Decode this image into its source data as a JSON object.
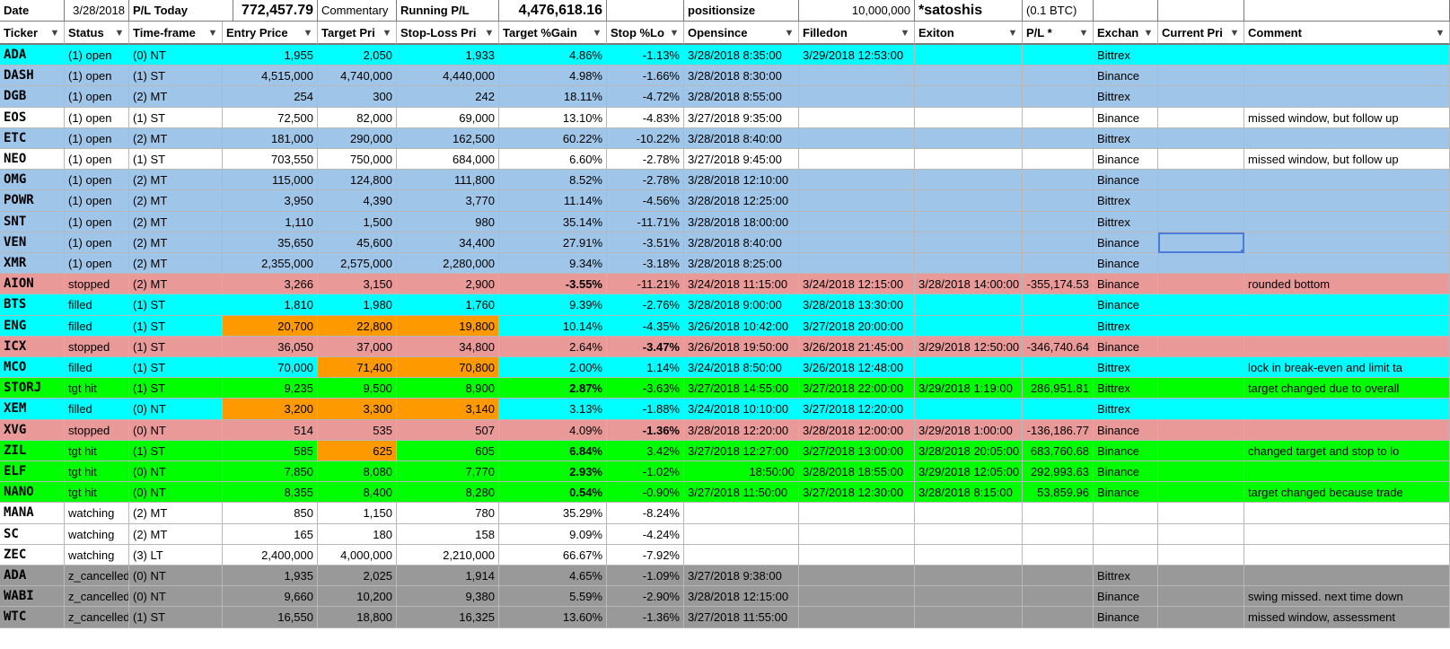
{
  "colors": {
    "open_cyan": "#00ffff",
    "open_blue": "#9fc5e8",
    "stopped": "#ea9999",
    "filled": "#00ffff",
    "tgt_hit": "#00ff00",
    "cancelled": "#999999",
    "orange": "#ff9900",
    "white": "#ffffff"
  },
  "top": {
    "date_label": "Date",
    "date_value": "3/28/2018",
    "pl_today_label": "P/L Today",
    "pl_today_value": "772,457.79",
    "commentary_label": "Commentary",
    "running_label": "Running P/L",
    "running_value": "4,476,618.16",
    "positionsize_label": "positionsize",
    "positionsize_value": "10,000,000",
    "satoshis_label": "*satoshis",
    "btc_label": "(0.1 BTC)"
  },
  "headers": [
    "Ticker",
    "Status",
    "Time-frame",
    "Entry Price",
    "Target Pri",
    "Stop-Loss Pri",
    "Target %Gain",
    "Stop %Lo",
    "Opensince",
    "Filledon",
    "Exiton",
    "P/L *",
    "Exchan",
    "Current Pri",
    "Comment"
  ],
  "rows": [
    {
      "bg": "open_cyan",
      "cells": [
        "ADA",
        "(1) open",
        "(0) NT",
        "1,955",
        "2,050",
        "1,933",
        "4.86%",
        "-1.13%",
        "3/28/2018 8:35:00",
        "3/29/2018 12:53:00",
        "",
        "",
        "Bittrex",
        "",
        ""
      ]
    },
    {
      "bg": "open_blue",
      "cells": [
        "DASH",
        "(1) open",
        "(1) ST",
        "4,515,000",
        "4,740,000",
        "4,440,000",
        "4.98%",
        "-1.66%",
        "3/28/2018 8:30:00",
        "",
        "",
        "",
        "Binance",
        "",
        ""
      ]
    },
    {
      "bg": "open_blue",
      "cells": [
        "DGB",
        "(1) open",
        "(2) MT",
        "254",
        "300",
        "242",
        "18.11%",
        "-4.72%",
        "3/28/2018 8:55:00",
        "",
        "",
        "",
        "Bittrex",
        "",
        ""
      ]
    },
    {
      "bg": "white",
      "cells": [
        "EOS",
        "(1) open",
        "(1) ST",
        "72,500",
        "82,000",
        "69,000",
        "13.10%",
        "-4.83%",
        "3/27/2018 9:35:00",
        "",
        "",
        "",
        "Binance",
        "",
        "missed window, but follow up"
      ]
    },
    {
      "bg": "open_blue",
      "cells": [
        "ETC",
        "(1) open",
        "(2) MT",
        "181,000",
        "290,000",
        "162,500",
        "60.22%",
        "-10.22%",
        "3/28/2018 8:40:00",
        "",
        "",
        "",
        "Bittrex",
        "",
        ""
      ]
    },
    {
      "bg": "white",
      "cells": [
        "NEO",
        "(1) open",
        "(1) ST",
        "703,550",
        "750,000",
        "684,000",
        "6.60%",
        "-2.78%",
        "3/27/2018 9:45:00",
        "",
        "",
        "",
        "Binance",
        "",
        "missed window, but follow up"
      ]
    },
    {
      "bg": "open_blue",
      "cells": [
        "OMG",
        "(1) open",
        "(2) MT",
        "115,000",
        "124,800",
        "111,800",
        "8.52%",
        "-2.78%",
        "3/28/2018 12:10:00",
        "",
        "",
        "",
        "Binance",
        "",
        ""
      ]
    },
    {
      "bg": "open_blue",
      "cells": [
        "POWR",
        "(1) open",
        "(2) MT",
        "3,950",
        "4,390",
        "3,770",
        "11.14%",
        "-4.56%",
        "3/28/2018 12:25:00",
        "",
        "",
        "",
        "Bittrex",
        "",
        ""
      ]
    },
    {
      "bg": "open_blue",
      "cells": [
        "SNT",
        "(1) open",
        "(2) MT",
        "1,110",
        "1,500",
        "980",
        "35.14%",
        "-11.71%",
        "3/28/2018 18:00:00",
        "",
        "",
        "",
        "Bittrex",
        "",
        ""
      ]
    },
    {
      "bg": "open_blue",
      "cells": [
        "VEN",
        "(1) open",
        "(2) MT",
        "35,650",
        "45,600",
        "34,400",
        "27.91%",
        "-3.51%",
        "3/28/2018 8:40:00",
        "",
        "",
        "",
        "Binance",
        "",
        ""
      ]
    },
    {
      "bg": "open_blue",
      "cells": [
        "XMR",
        "(1) open",
        "(2) MT",
        "2,355,000",
        "2,575,000",
        "2,280,000",
        "9.34%",
        "-3.18%",
        "3/28/2018 8:25:00",
        "",
        "",
        "",
        "Binance",
        "",
        ""
      ]
    },
    {
      "bg": "stopped",
      "cells": [
        "AION",
        "stopped",
        "(2) MT",
        "3,266",
        "3,150",
        "2,900",
        "-3.55%",
        "-11.21%",
        "3/24/2018 11:15:00",
        "3/24/2018 12:15:00",
        "3/28/2018 14:00:00",
        "-355,174.53",
        "Binance",
        "",
        "rounded bottom"
      ]
    },
    {
      "bg": "filled",
      "cells": [
        "BTS",
        "filled",
        "(1) ST",
        "1,810",
        "1,980",
        "1,760",
        "9.39%",
        "-2.76%",
        "3/28/2018 9:00:00",
        "3/28/2018 13:30:00",
        "",
        "",
        "Binance",
        "",
        ""
      ]
    },
    {
      "bg": "filled",
      "cells": [
        "ENG",
        "filled",
        "(1) ST",
        "20,700",
        "22,800",
        "19,800",
        "10.14%",
        "-4.35%",
        "3/26/2018 10:42:00",
        "3/27/2018 20:00:00",
        "",
        "",
        "Bittrex",
        "",
        ""
      ]
    },
    {
      "bg": "stopped",
      "cells": [
        "ICX",
        "stopped",
        "(1) ST",
        "36,050",
        "37,000",
        "34,800",
        "2.64%",
        "-3.47%",
        "3/26/2018 19:50:00",
        "3/26/2018 21:45:00",
        "3/29/2018 12:50:00",
        "-346,740.64",
        "Binance",
        "",
        ""
      ]
    },
    {
      "bg": "filled",
      "cells": [
        "MCO",
        "filled",
        "(1) ST",
        "70,000",
        "71,400",
        "70,800",
        "2.00%",
        "1.14%",
        "3/24/2018 8:50:00",
        "3/26/2018 12:48:00",
        "",
        "",
        "Bittrex",
        "",
        "lock in break-even and limit ta"
      ]
    },
    {
      "bg": "tgt_hit",
      "cells": [
        "STORJ",
        "tgt hit",
        "(1) ST",
        "9,235",
        "9,500",
        "8,900",
        "2.87%",
        "-3.63%",
        "3/27/2018 14:55:00",
        "3/27/2018 22:00:00",
        "3/29/2018 1:19:00",
        "286,951.81",
        "Bittrex",
        "",
        "target changed due to overall"
      ]
    },
    {
      "bg": "filled",
      "cells": [
        "XEM",
        "filled",
        "(0) NT",
        "3,200",
        "3,300",
        "3,140",
        "3.13%",
        "-1.88%",
        "3/24/2018 10:10:00",
        "3/27/2018 12:20:00",
        "",
        "",
        "Bittrex",
        "",
        ""
      ]
    },
    {
      "bg": "stopped",
      "cells": [
        "XVG",
        "stopped",
        "(0) NT",
        "514",
        "535",
        "507",
        "4.09%",
        "-1.36%",
        "3/28/2018 12:20:00",
        "3/28/2018 12:00:00",
        "3/29/2018 1:00:00",
        "-136,186.77",
        "Binance",
        "",
        ""
      ]
    },
    {
      "bg": "tgt_hit",
      "cells": [
        "ZIL",
        "tgt hit",
        "(1) ST",
        "585",
        "625",
        "605",
        "6.84%",
        "3.42%",
        "3/27/2018 12:27:00",
        "3/27/2018 13:00:00",
        "3/28/2018 20:05:00",
        "683,760.68",
        "Binance",
        "",
        "changed target and stop to lo"
      ]
    },
    {
      "bg": "tgt_hit",
      "cells": [
        "ELF",
        "tgt hit",
        "(0) NT",
        "7,850",
        "8,080",
        "7,770",
        "2.93%",
        "-1.02%",
        "18:50:00",
        "3/28/2018 18:55:00",
        "3/29/2018 12:05:00",
        "292,993.63",
        "Binance",
        "",
        ""
      ]
    },
    {
      "bg": "tgt_hit",
      "cells": [
        "NANO",
        "tgt hit",
        "(0) NT",
        "8,355",
        "8,400",
        "8,280",
        "0.54%",
        "-0.90%",
        "3/27/2018 11:50:00",
        "3/27/2018 12:30:00",
        "3/28/2018 8:15:00",
        "53,859.96",
        "Binance",
        "",
        "target changed because trade"
      ]
    },
    {
      "bg": "white",
      "cells": [
        "MANA",
        "watching",
        "(2) MT",
        "850",
        "1,150",
        "780",
        "35.29%",
        "-8.24%",
        "",
        "",
        "",
        "",
        "",
        "",
        ""
      ]
    },
    {
      "bg": "white",
      "cells": [
        "SC",
        "watching",
        "(2) MT",
        "165",
        "180",
        "158",
        "9.09%",
        "-4.24%",
        "",
        "",
        "",
        "",
        "",
        "",
        ""
      ]
    },
    {
      "bg": "white",
      "cells": [
        "ZEC",
        "watching",
        "(3) LT",
        "2,400,000",
        "4,000,000",
        "2,210,000",
        "66.67%",
        "-7.92%",
        "",
        "",
        "",
        "",
        "",
        "",
        ""
      ]
    },
    {
      "bg": "cancelled",
      "cells": [
        "ADA",
        "z_cancelled",
        "(0) NT",
        "1,935",
        "2,025",
        "1,914",
        "4.65%",
        "-1.09%",
        "3/27/2018 9:38:00",
        "",
        "",
        "",
        "Bittrex",
        "",
        ""
      ]
    },
    {
      "bg": "cancelled",
      "cells": [
        "WABI",
        "z_cancelled",
        "(0) NT",
        "9,660",
        "10,200",
        "9,380",
        "5.59%",
        "-2.90%",
        "3/28/2018 12:15:00",
        "",
        "",
        "",
        "Binance",
        "",
        "swing missed. next time down"
      ]
    },
    {
      "bg": "cancelled",
      "cells": [
        "WTC",
        "z_cancelled",
        "(1) ST",
        "16,550",
        "18,800",
        "16,325",
        "13.60%",
        "-1.36%",
        "3/27/2018 11:55:00",
        "",
        "",
        "",
        "Binance",
        "",
        "missed window, assessment"
      ]
    }
  ],
  "orange_cells": [
    [
      13,
      3
    ],
    [
      13,
      4
    ],
    [
      13,
      5
    ],
    [
      15,
      4
    ],
    [
      15,
      5
    ],
    [
      17,
      3
    ],
    [
      17,
      4
    ],
    [
      17,
      5
    ],
    [
      19,
      4
    ]
  ],
  "bold_cells": [
    [
      11,
      6
    ],
    [
      14,
      7
    ],
    [
      16,
      6
    ],
    [
      18,
      7
    ],
    [
      19,
      6
    ],
    [
      20,
      6
    ],
    [
      21,
      6
    ]
  ],
  "selected_cell": [
    9,
    13
  ]
}
